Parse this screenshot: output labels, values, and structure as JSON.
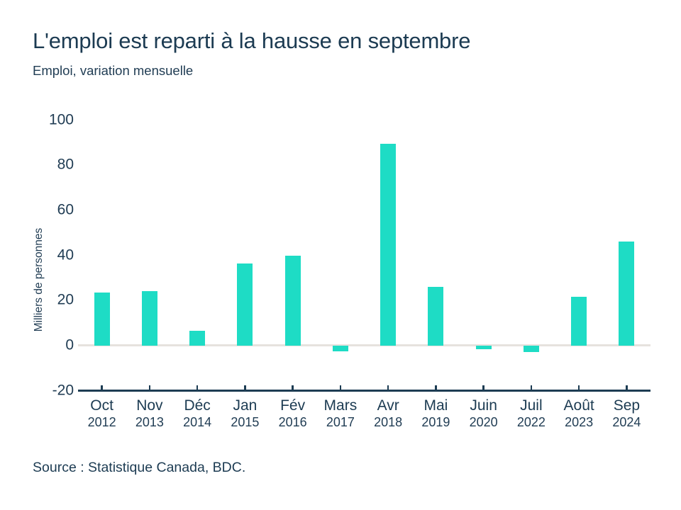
{
  "header": {
    "title": "L'emploi est reparti à la hausse en septembre",
    "subtitle": "Emploi, variation mensuelle"
  },
  "chart_data": {
    "type": "bar",
    "title": "L'emploi est reparti à la hausse en septembre",
    "subtitle": "Emploi, variation mensuelle",
    "xlabel": "",
    "ylabel": "Milliers de personnes",
    "ylim": [
      -20,
      100
    ],
    "yticks": [
      100,
      80,
      60,
      40,
      20,
      0,
      -20
    ],
    "grid": "zero-line-only",
    "legend": null,
    "categories": [
      {
        "month": "Oct",
        "year": "2012"
      },
      {
        "month": "Nov",
        "year": "2013"
      },
      {
        "month": "Déc",
        "year": "2014"
      },
      {
        "month": "Jan",
        "year": "2015"
      },
      {
        "month": "Fév",
        "year": "2016"
      },
      {
        "month": "Mars",
        "year": "2017"
      },
      {
        "month": "Avr",
        "year": "2018"
      },
      {
        "month": "Mai",
        "year": "2019"
      },
      {
        "month": "Juin",
        "year": "2020"
      },
      {
        "month": "Juil",
        "year": "2022"
      },
      {
        "month": "Août",
        "year": "2023"
      },
      {
        "month": "Sep",
        "year": "2024"
      }
    ],
    "values": [
      23.5,
      24,
      6.5,
      36.5,
      40,
      -2.5,
      89.5,
      26,
      -1.5,
      -3,
      21.5,
      46
    ]
  },
  "footer": {
    "source": "Source : Statistique Canada, BDC."
  },
  "colors": {
    "bar": "#1edcc5",
    "text": "#1c3b52",
    "zero_line": "#e6e2de",
    "axis_line": "#1d3c53",
    "background": "#ffffff"
  }
}
